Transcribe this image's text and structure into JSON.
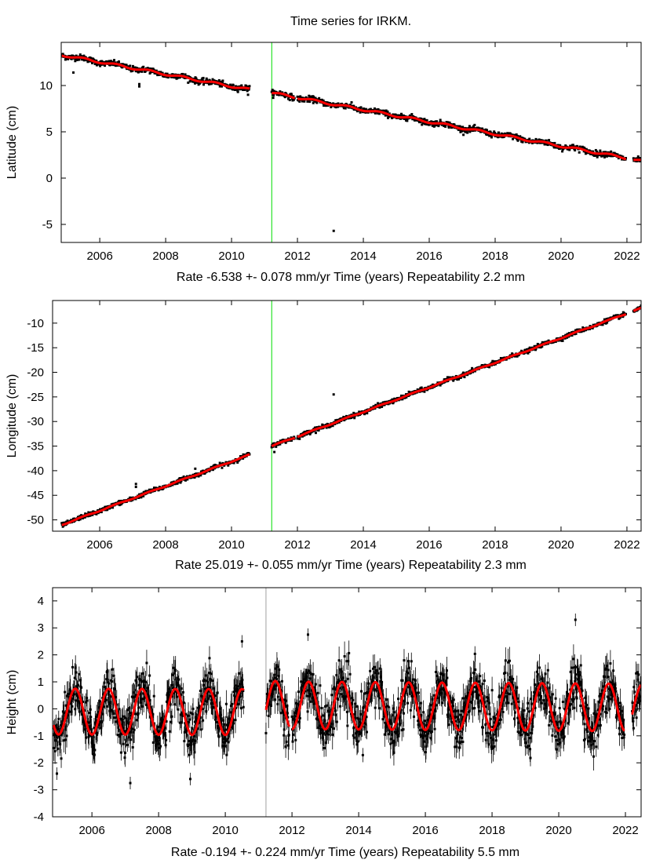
{
  "title": "Time series for IRKM.",
  "colors": {
    "observations": "#000000",
    "fit": "#ff0000",
    "offset_line": "#00dd00",
    "offset_line_height": "#a0a0a0"
  },
  "chart_data": [
    {
      "type": "scatter",
      "ylabel": "Latitude (cm)",
      "xlabel_parts": [
        "Rate -6.538 +- 0.078 mm/yr",
        "Time (years)",
        "Repeatability 2.2 mm"
      ],
      "xlim": [
        2004.83,
        2022.43
      ],
      "ylim": [
        -6.95,
        14.66
      ],
      "xticks": [
        2006,
        2008,
        2010,
        2012,
        2014,
        2016,
        2018,
        2020,
        2022
      ],
      "yticks": [
        -5,
        0,
        5,
        10
      ],
      "offset_epoch": 2011.22,
      "noise_cm": 0.15,
      "error_bars": false,
      "segments": [
        {
          "start": 2004.85,
          "end": 2010.55,
          "y_start": 13.3,
          "y_end": 9.55,
          "seasonal_amplitude": 0.12
        },
        {
          "start": 2011.22,
          "end": 2011.92,
          "y_start": 9.2,
          "y_end": 8.74,
          "seasonal_amplitude": 0.12
        },
        {
          "start": 2012.0,
          "end": 2021.97,
          "y_start": 8.69,
          "y_end": 2.17,
          "seasonal_amplitude": 0.12
        },
        {
          "start": 2022.2,
          "end": 2022.43,
          "y_start": 2.0,
          "y_end": 1.85,
          "seasonal_amplitude": 0.12
        }
      ],
      "outliers": [
        [
          2013.1,
          -5.7
        ],
        [
          2007.2,
          9.9
        ],
        [
          2007.2,
          10.15
        ],
        [
          2010.5,
          9.0
        ],
        [
          2005.2,
          11.4
        ]
      ]
    },
    {
      "type": "scatter",
      "ylabel": "Longitude (cm)",
      "xlabel_parts": [
        "Rate 25.019 +- 0.055 mm/yr",
        "Time (years)",
        "Repeatability 2.3 mm"
      ],
      "xlim": [
        2004.57,
        2022.43
      ],
      "ylim": [
        -52.3,
        -5.4
      ],
      "xticks": [
        2006,
        2008,
        2010,
        2012,
        2014,
        2016,
        2018,
        2020,
        2022
      ],
      "yticks": [
        -50,
        -45,
        -40,
        -35,
        -30,
        -25,
        -20,
        -15,
        -10
      ],
      "offset_epoch": 2011.22,
      "noise_cm": 0.2,
      "error_bars": false,
      "segments": [
        {
          "start": 2004.85,
          "end": 2010.55,
          "y_start": -51.0,
          "y_end": -36.75,
          "seasonal_amplitude": 0.1
        },
        {
          "start": 2011.22,
          "end": 2011.92,
          "y_start": -35.0,
          "y_end": -33.25,
          "seasonal_amplitude": 0.1
        },
        {
          "start": 2012.0,
          "end": 2021.97,
          "y_start": -33.05,
          "y_end": -8.1,
          "seasonal_amplitude": 0.1
        },
        {
          "start": 2022.2,
          "end": 2022.43,
          "y_start": -7.5,
          "y_end": -6.95,
          "seasonal_amplitude": 0.1
        }
      ],
      "outliers": [
        [
          2013.1,
          -24.5
        ],
        [
          2007.1,
          -42.7
        ],
        [
          2007.1,
          -43.3
        ],
        [
          2005.4,
          -49.5
        ],
        [
          2008.9,
          -39.6
        ],
        [
          2011.3,
          -36.2
        ]
      ]
    },
    {
      "type": "scatter",
      "ylabel": "Height (cm)",
      "xlabel_parts": [
        "Rate -0.194 +- 0.224 mm/yr",
        "Time (years)",
        "Repeatability 5.5 mm"
      ],
      "xlim": [
        2004.82,
        2022.47
      ],
      "ylim": [
        -4,
        4.49
      ],
      "xticks": [
        2006,
        2008,
        2010,
        2012,
        2014,
        2016,
        2018,
        2020,
        2022
      ],
      "yticks": [
        -4,
        -3,
        -2,
        -1,
        0,
        1,
        2,
        3,
        4
      ],
      "offset_epoch": 2011.22,
      "noise_cm": 0.45,
      "error_bars": true,
      "segments": [
        {
          "start": 2004.85,
          "end": 2010.55,
          "y_start": -0.1,
          "y_end": -0.12,
          "seasonal_amplitude": 0.85
        },
        {
          "start": 2011.22,
          "end": 2011.92,
          "y_start": 0.13,
          "y_end": 0.13,
          "seasonal_amplitude": 0.9
        },
        {
          "start": 2012.0,
          "end": 2021.97,
          "y_start": 0.13,
          "y_end": 0.05,
          "seasonal_amplitude": 0.88
        },
        {
          "start": 2022.2,
          "end": 2022.47,
          "y_start": 0.05,
          "y_end": 0.05,
          "seasonal_amplitude": 0.85
        }
      ],
      "outliers": [
        [
          2012.48,
          2.75
        ],
        [
          2020.5,
          3.3
        ],
        [
          2007.15,
          -2.75
        ],
        [
          2008.95,
          -2.6
        ],
        [
          2010.5,
          2.5
        ],
        [
          2004.95,
          -2.4
        ]
      ]
    }
  ]
}
